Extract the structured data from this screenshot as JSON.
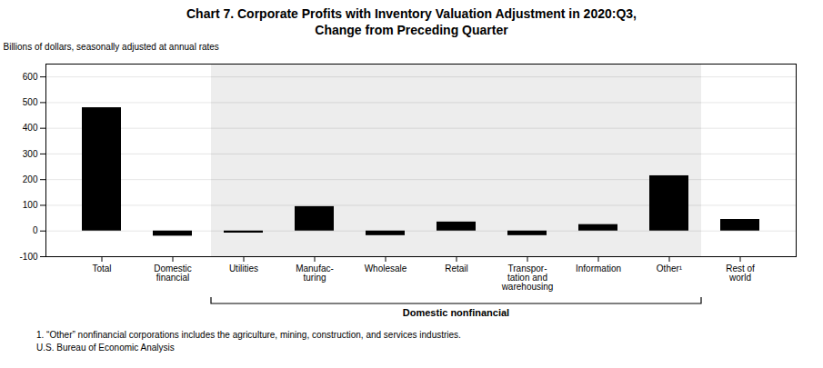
{
  "chart_data": {
    "type": "bar",
    "title": "Chart 7. Corporate Profits with Inventory Valuation Adjustment in 2020:Q3,\nChange from Preceding Quarter",
    "ylabel": "Billions of dollars, seasonally adjusted at annual rates",
    "categories": [
      "Total",
      "Domestic\nfinancial",
      "Utilities",
      "Manufac-\nturing",
      "Wholesale",
      "Retail",
      "Transpor-\ntation and\nwarehousing",
      "Information",
      "Other¹",
      "Rest of\nworld"
    ],
    "values": [
      480,
      -20,
      -8,
      95,
      -18,
      35,
      -18,
      25,
      215,
      45
    ],
    "ylim": [
      -100,
      650
    ],
    "yticks": [
      -100,
      0,
      100,
      200,
      300,
      400,
      500,
      600
    ],
    "grid": true,
    "annotations": [
      {
        "text": "Domestic nonfinancial",
        "from": "Utilities",
        "to": "Other¹"
      }
    ],
    "footnotes": [
      "1. “Other” nonfinancial corporations includes the agriculture, mining, construction, and services industries.",
      "U.S. Bureau of Economic Analysis"
    ]
  }
}
